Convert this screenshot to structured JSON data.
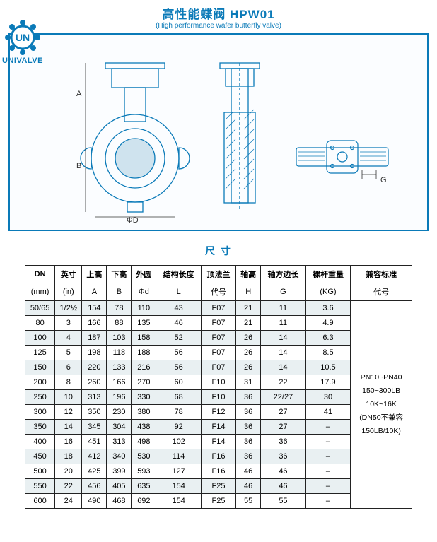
{
  "header": {
    "title_cn": "高性能蝶阀 HPW01",
    "title_en": "(High performance wafer butterfly valve)",
    "logo_text": "UNIVALVE",
    "logo_un": "UN"
  },
  "drawing_labels": {
    "A": "A",
    "B": "B",
    "PhiD": "ΦD",
    "G": "G"
  },
  "size_heading": "尺 寸",
  "table": {
    "header_row1": [
      "DN",
      "英寸",
      "上高",
      "下高",
      "外圆",
      "结构长度",
      "顶法兰",
      "轴高",
      "轴方边长",
      "裸杆重量",
      "兼容标准"
    ],
    "header_row2": [
      "(mm)",
      "(in)",
      "A",
      "B",
      "Φd",
      "L",
      "代号",
      "H",
      "G",
      "(KG)",
      "代号"
    ],
    "compat_lines": [
      "PN10~PN40",
      "150~300LB",
      "10K~16K",
      "(DN50不兼容",
      "150LB/10K)"
    ],
    "rows": [
      [
        "50/65",
        "1/2½",
        "154",
        "78",
        "110",
        "43",
        "F07",
        "21",
        "11",
        "3.6"
      ],
      [
        "80",
        "3",
        "166",
        "88",
        "135",
        "46",
        "F07",
        "21",
        "11",
        "4.9"
      ],
      [
        "100",
        "4",
        "187",
        "103",
        "158",
        "52",
        "F07",
        "26",
        "14",
        "6.3"
      ],
      [
        "125",
        "5",
        "198",
        "118",
        "188",
        "56",
        "F07",
        "26",
        "14",
        "8.5"
      ],
      [
        "150",
        "6",
        "220",
        "133",
        "216",
        "56",
        "F07",
        "26",
        "14",
        "10.5"
      ],
      [
        "200",
        "8",
        "260",
        "166",
        "270",
        "60",
        "F10",
        "31",
        "22",
        "17.9"
      ],
      [
        "250",
        "10",
        "313",
        "196",
        "330",
        "68",
        "F10",
        "36",
        "22/27",
        "30"
      ],
      [
        "300",
        "12",
        "350",
        "230",
        "380",
        "78",
        "F12",
        "36",
        "27",
        "41"
      ],
      [
        "350",
        "14",
        "345",
        "304",
        "438",
        "92",
        "F14",
        "36",
        "27",
        "–"
      ],
      [
        "400",
        "16",
        "451",
        "313",
        "498",
        "102",
        "F14",
        "36",
        "36",
        "–"
      ],
      [
        "450",
        "18",
        "412",
        "340",
        "530",
        "114",
        "F16",
        "36",
        "36",
        "–"
      ],
      [
        "500",
        "20",
        "425",
        "399",
        "593",
        "127",
        "F16",
        "46",
        "46",
        "–"
      ],
      [
        "550",
        "22",
        "456",
        "405",
        "635",
        "154",
        "F25",
        "46",
        "46",
        "–"
      ],
      [
        "600",
        "24",
        "490",
        "468",
        "692",
        "154",
        "F25",
        "55",
        "55",
        "–"
      ]
    ]
  },
  "colors": {
    "brand": "#0a7ab8",
    "stripe": "#e9f0f2",
    "border": "#222222"
  }
}
